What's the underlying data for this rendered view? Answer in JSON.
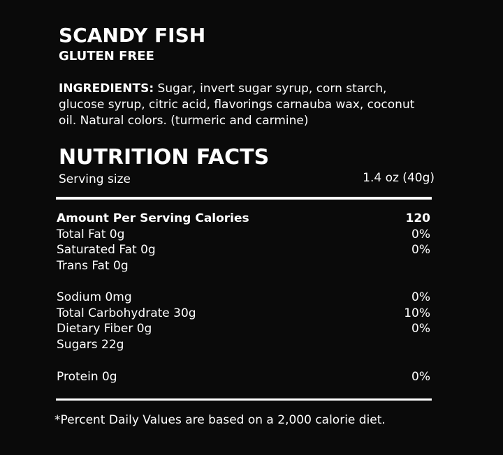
{
  "product": {
    "name": "SCANDY FISH",
    "tag": "GLUTEN FREE"
  },
  "ingredients": {
    "label": "INGREDIENTS:",
    "text": " Sugar, invert sugar syrup, corn starch, glucose syrup, citric acid, flavorings carnauba wax, coconut oil. Natural colors. (turmeric and carmine)"
  },
  "nutrition": {
    "title": "NUTRITION FACTS",
    "serving_label": "Serving size",
    "serving_value": "1.4 oz (40g)",
    "header": {
      "label": "Amount Per Serving Calories",
      "value": "120"
    },
    "rows": [
      {
        "label": "Total Fat 0g",
        "value": "0%"
      },
      {
        "label": "Saturated Fat 0g",
        "value": "0%"
      },
      {
        "label": "Trans Fat 0g",
        "value": ""
      },
      {
        "label": "Sodium 0mg",
        "value": "0%"
      },
      {
        "label": "Total Carbohydrate 30g",
        "value": "10%"
      },
      {
        "label": "Dietary Fiber 0g",
        "value": "0%"
      },
      {
        "label": "Sugars 22g",
        "value": ""
      },
      {
        "label": "Protein 0g",
        "value": "0%"
      }
    ],
    "footnote": "*Percent Daily Values are based on a 2,000 calorie diet."
  }
}
